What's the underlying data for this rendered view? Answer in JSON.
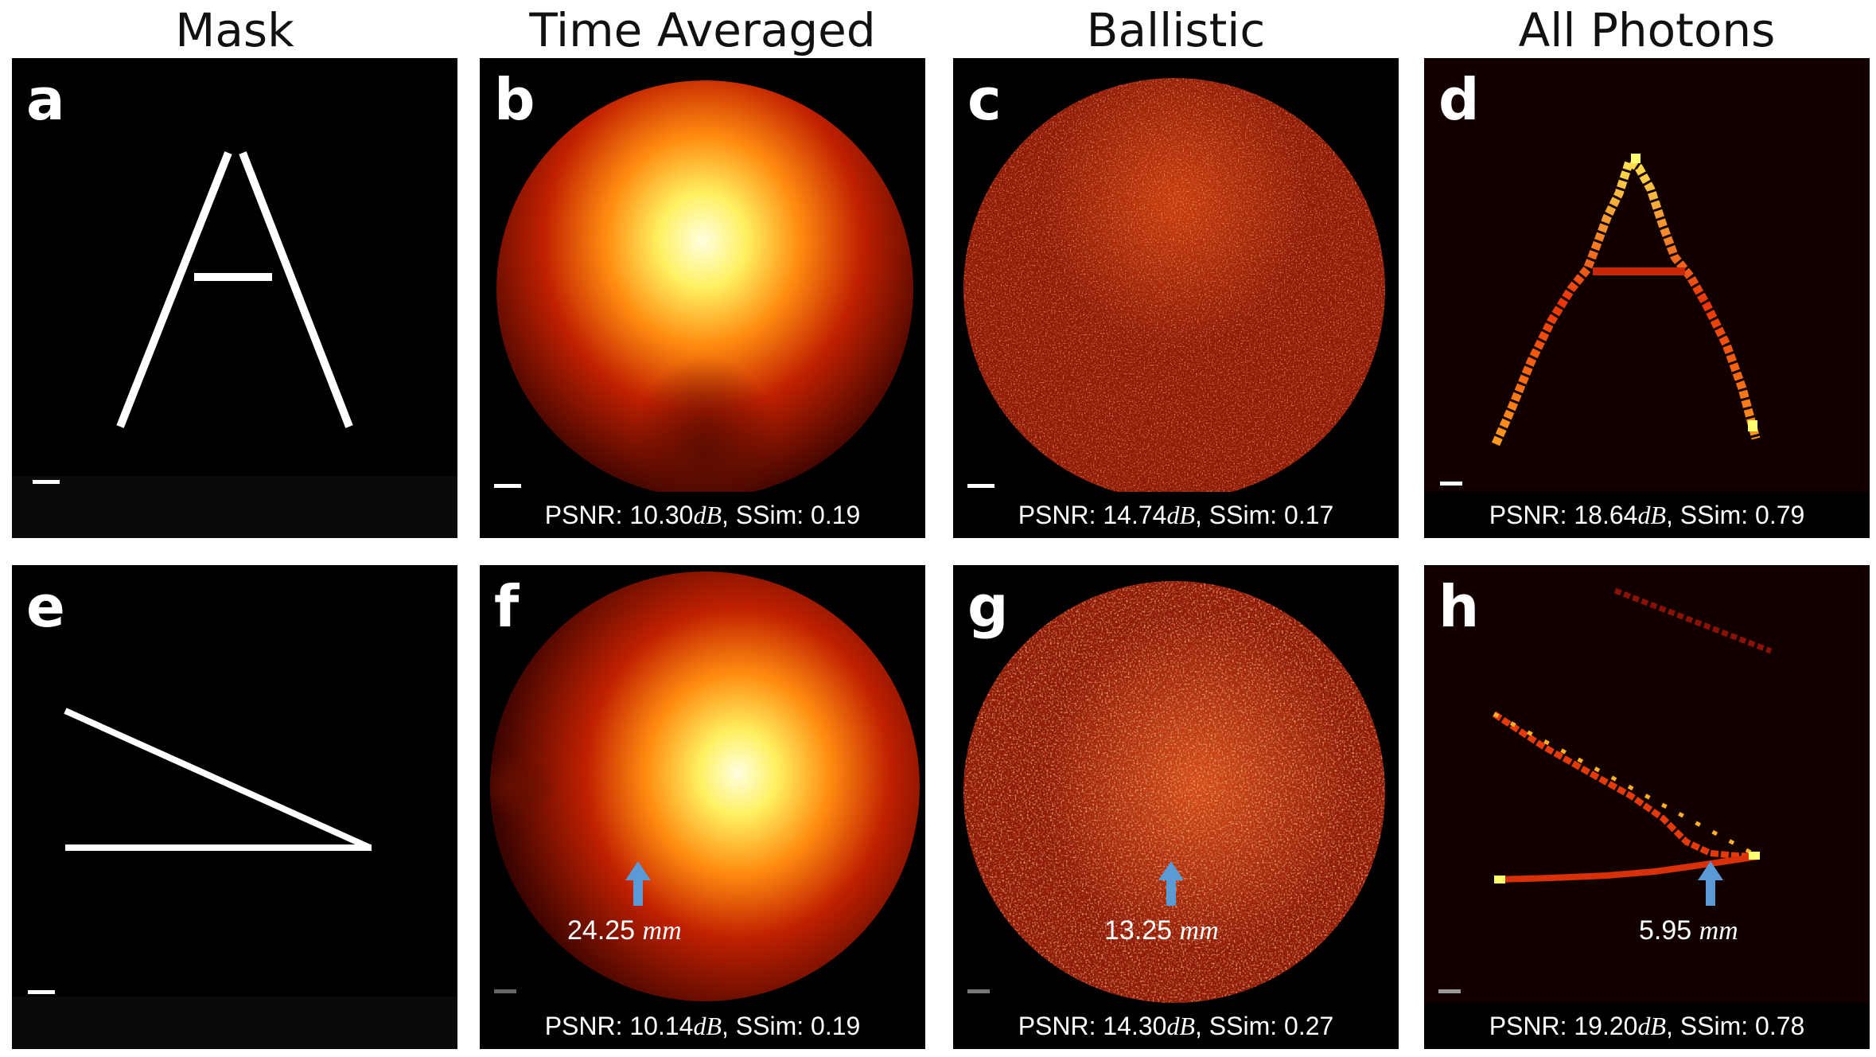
{
  "columns": [
    "Mask",
    "Time Averaged",
    "Ballistic",
    "All Photons"
  ],
  "panels": {
    "a": {
      "label": "a"
    },
    "b": {
      "label": "b",
      "psnr_prefix": "PSNR: ",
      "psnr_value": "10.30",
      "psnr_unit": "dB",
      "ssim": ",    SSim: 0.19"
    },
    "c": {
      "label": "c",
      "psnr_prefix": "PSNR: ",
      "psnr_value": "14.74",
      "psnr_unit": "dB",
      "ssim": ",    SSim: 0.17"
    },
    "d": {
      "label": "d",
      "psnr_prefix": "PSNR: ",
      "psnr_value": "18.64",
      "psnr_unit": "dB",
      "ssim": ",    SSim: 0.79"
    },
    "e": {
      "label": "e"
    },
    "f": {
      "label": "f",
      "psnr_prefix": "PSNR: ",
      "psnr_value": "10.14",
      "psnr_unit": "dB",
      "ssim": ",    SSim: 0.19",
      "annotation_value": "24.25 ",
      "annotation_unit": "mm"
    },
    "g": {
      "label": "g",
      "psnr_prefix": "PSNR: ",
      "psnr_value": "14.30",
      "psnr_unit": "dB",
      "ssim": ",    SSim: 0.27",
      "annotation_value": "13.25 ",
      "annotation_unit": "mm"
    },
    "h": {
      "label": "h",
      "psnr_prefix": "PSNR: ",
      "psnr_value": "19.20",
      "psnr_unit": "dB",
      "ssim": ",    SSim: 0.78",
      "annotation_value": "5.95 ",
      "annotation_unit": "mm"
    }
  },
  "colors": {
    "arrow": "#5b9bd5",
    "hot_low": "#3a0000",
    "hot_mid": "#e63c0a",
    "hot_high": "#ffff66"
  }
}
